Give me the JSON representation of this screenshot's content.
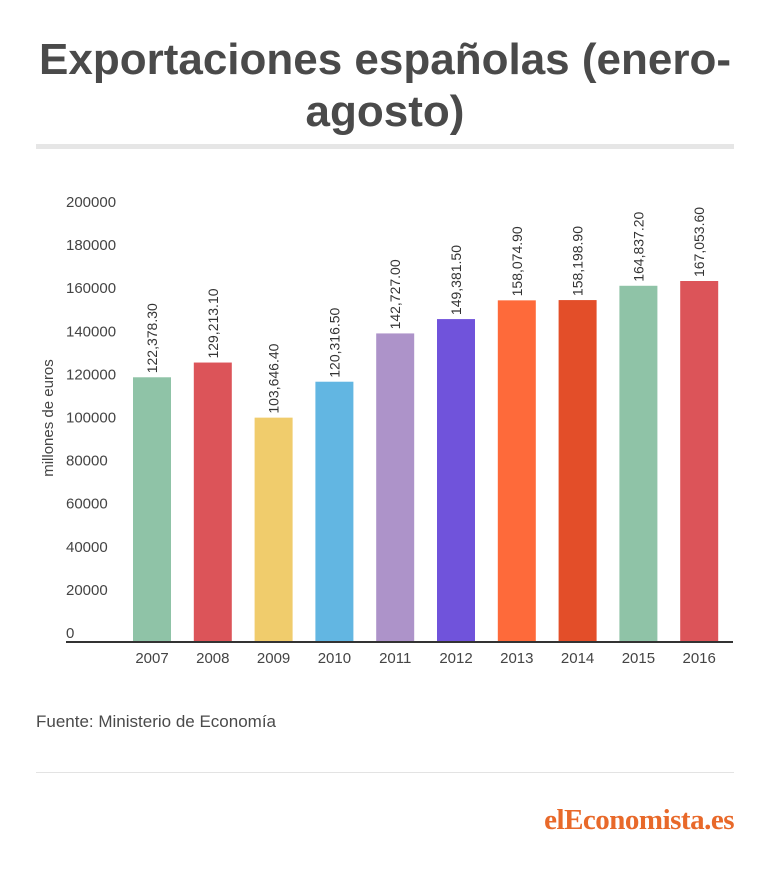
{
  "chart_data": {
    "type": "bar",
    "title": "Exportaciones españolas (enero-agosto)",
    "ylabel": "millones de euros",
    "xlabel": "",
    "categories": [
      "2007",
      "2008",
      "2009",
      "2010",
      "2011",
      "2012",
      "2013",
      "2014",
      "2015",
      "2016"
    ],
    "values": [
      122378.3,
      129213.1,
      103646.4,
      120316.5,
      142727.0,
      149381.5,
      158074.9,
      158198.9,
      164837.2,
      167053.6
    ],
    "value_labels": [
      "122,378.30",
      "129,213.10",
      "103,646.40",
      "120,316.50",
      "142,727.00",
      "149,381.50",
      "158,074.90",
      "158,198.90",
      "164,837.20",
      "167,053.60"
    ],
    "colors": [
      "#8fc3a7",
      "#dc5459",
      "#f0cc6c",
      "#62b6e2",
      "#ad93c9",
      "#7053db",
      "#fe6a3a",
      "#e34e29",
      "#8fc3a7",
      "#dc5459"
    ],
    "ylim": [
      0,
      200000
    ],
    "yticks": [
      "0",
      "20000",
      "40000",
      "60000",
      "80000",
      "100000",
      "120000",
      "140000",
      "160000",
      "180000",
      "200000"
    ],
    "grid": false
  },
  "source": "Fuente: Ministerio de Economía",
  "brand": "elEconomista.es"
}
